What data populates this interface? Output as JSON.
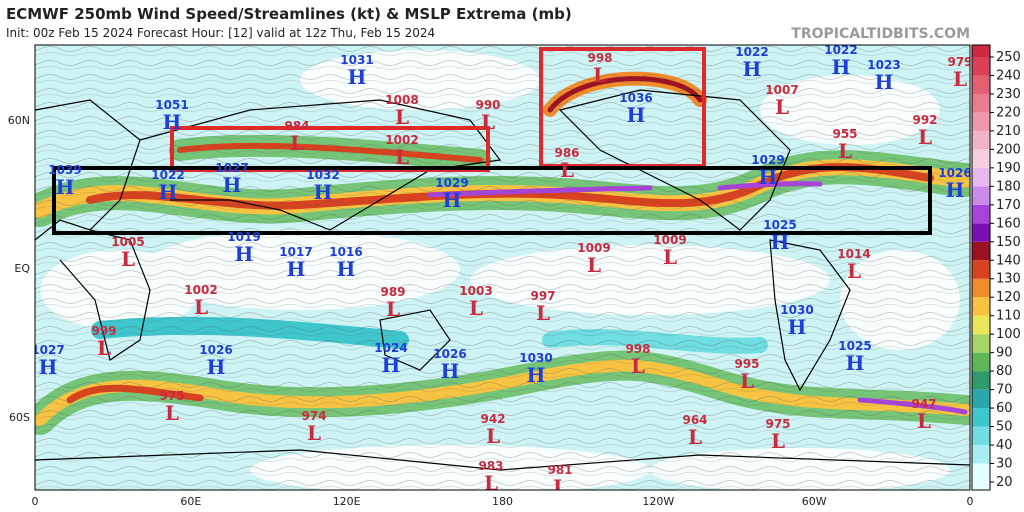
{
  "header": {
    "title": "ECMWF 250mb Wind Speed/Streamlines (kt) & MSLP Extrema (mb)",
    "subtitle": "Init: 00z Feb 15 2024   Forecast Hour: [12]   valid at 12z Thu, Feb 15 2024",
    "watermark": "TROPICALTIDBITS.COM"
  },
  "axes": {
    "x_labels": [
      "0",
      "60E",
      "120E",
      "180",
      "120W",
      "60W",
      "0"
    ],
    "y_labels": [
      "60N",
      "EQ",
      "60S"
    ]
  },
  "colorbar": {
    "ticks": [
      20,
      30,
      40,
      50,
      60,
      70,
      80,
      90,
      100,
      110,
      120,
      130,
      140,
      150,
      160,
      170,
      180,
      190,
      200,
      210,
      220,
      230,
      240,
      250
    ],
    "colors": [
      "#e8ffff",
      "#a8eef0",
      "#6fdde2",
      "#3fc6cc",
      "#2aa8aa",
      "#2f9a6a",
      "#5fb858",
      "#a7d468",
      "#e9e65a",
      "#f6c442",
      "#f08c2c",
      "#d8421e",
      "#9c1222",
      "#7a10b4",
      "#a844dc",
      "#c98ae8",
      "#e6b8ee",
      "#f3cfe0",
      "#f2b3c6",
      "#ee98ac",
      "#ea7c90",
      "#e35f74",
      "#db405a",
      "#d02840"
    ]
  },
  "centers": [
    {
      "type": "H",
      "value": 1031
    },
    {
      "type": "H",
      "value": 1051
    },
    {
      "type": "H",
      "value": 1039
    },
    {
      "type": "H",
      "value": 1022
    },
    {
      "type": "H",
      "value": 1027
    },
    {
      "type": "H",
      "value": 1032
    },
    {
      "type": "H",
      "value": 1029
    },
    {
      "type": "H",
      "value": 1036
    },
    {
      "type": "H",
      "value": 1022
    },
    {
      "type": "H",
      "value": 1022
    },
    {
      "type": "H",
      "value": 1023
    },
    {
      "type": "H",
      "value": 1029
    },
    {
      "type": "H",
      "value": 1026
    },
    {
      "type": "H",
      "value": 1025
    },
    {
      "type": "H",
      "value": 1019
    },
    {
      "type": "H",
      "value": 1017
    },
    {
      "type": "H",
      "value": 1016
    },
    {
      "type": "H",
      "value": 1030
    },
    {
      "type": "H",
      "value": 1025
    },
    {
      "type": "H",
      "value": 1027
    },
    {
      "type": "H",
      "value": 1026
    },
    {
      "type": "H",
      "value": 1024
    },
    {
      "type": "H",
      "value": 1026
    },
    {
      "type": "H",
      "value": 1030
    },
    {
      "type": "L",
      "value": 998
    },
    {
      "type": "L",
      "value": 1008
    },
    {
      "type": "L",
      "value": 990
    },
    {
      "type": "L",
      "value": 984
    },
    {
      "type": "L",
      "value": 1002
    },
    {
      "type": "L",
      "value": 986
    },
    {
      "type": "L",
      "value": 1007
    },
    {
      "type": "L",
      "value": 979
    },
    {
      "type": "L",
      "value": 955
    },
    {
      "type": "L",
      "value": 992
    },
    {
      "type": "L",
      "value": 1005
    },
    {
      "type": "L",
      "value": 1009
    },
    {
      "type": "L",
      "value": 1009
    },
    {
      "type": "L",
      "value": 1014
    },
    {
      "type": "L",
      "value": 1002
    },
    {
      "type": "L",
      "value": 989
    },
    {
      "type": "L",
      "value": 1003
    },
    {
      "type": "L",
      "value": 997
    },
    {
      "type": "L",
      "value": 999
    },
    {
      "type": "L",
      "value": 998
    },
    {
      "type": "L",
      "value": 995
    },
    {
      "type": "L",
      "value": 975
    },
    {
      "type": "L",
      "value": 974
    },
    {
      "type": "L",
      "value": 942
    },
    {
      "type": "L",
      "value": 964
    },
    {
      "type": "L",
      "value": 975
    },
    {
      "type": "L",
      "value": 947
    },
    {
      "type": "L",
      "value": 983
    },
    {
      "type": "L",
      "value": 981
    }
  ]
}
